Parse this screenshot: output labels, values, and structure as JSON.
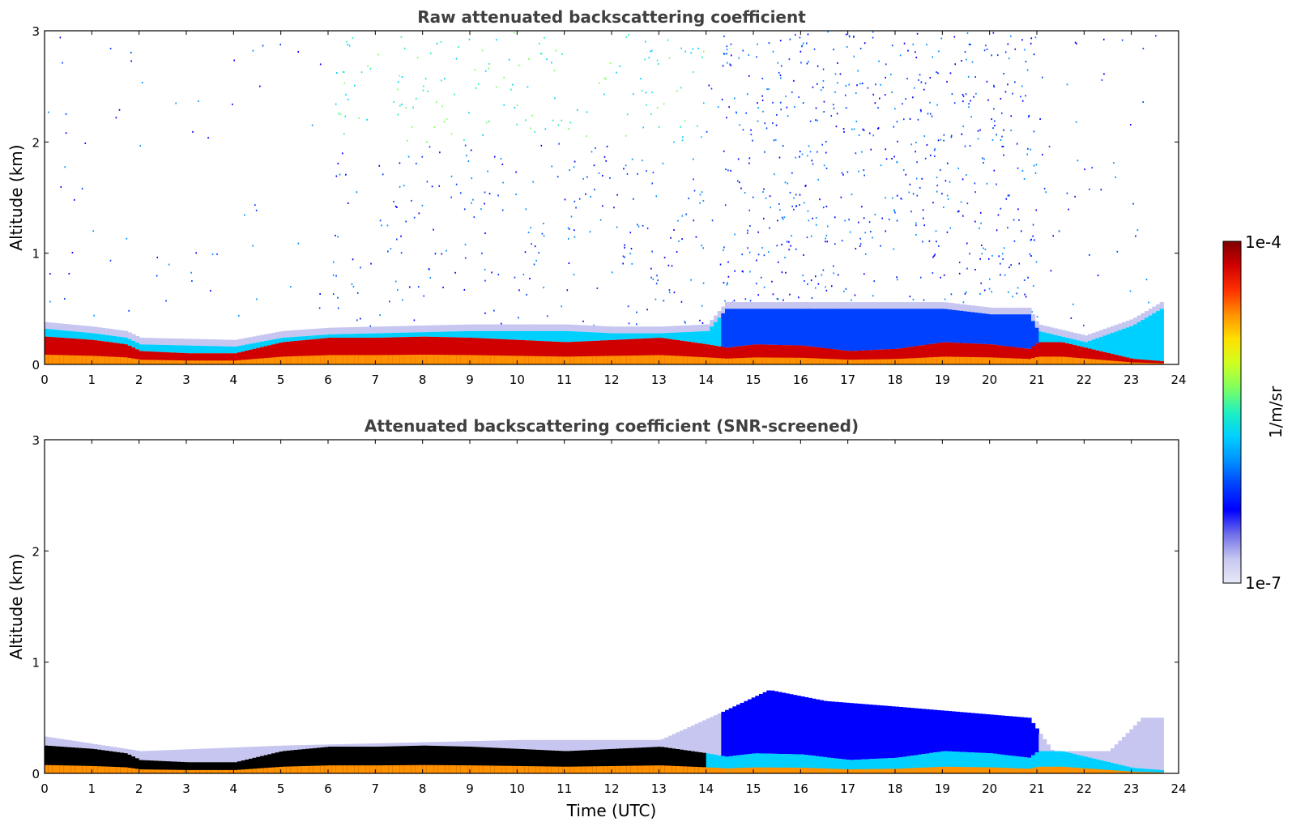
{
  "chart_data": [
    {
      "type": "heatmap",
      "title": "Raw attenuated backscattering coefficient",
      "xlabel": "",
      "ylabel": "Altitude (km)",
      "xlim": [
        0,
        24
      ],
      "ylim": [
        0,
        3
      ],
      "x_ticks": [
        "0",
        "1",
        "2",
        "3",
        "4",
        "5",
        "6",
        "7",
        "8",
        "9",
        "10",
        "11",
        "12",
        "13",
        "14",
        "15",
        "16",
        "17",
        "18",
        "19",
        "20",
        "21",
        "22",
        "23",
        "24"
      ],
      "y_ticks": [
        "0",
        "1",
        "2",
        "3"
      ],
      "aerosol_layer": {
        "time_utc": [
          0,
          1,
          1.7,
          2,
          3,
          4,
          5,
          6,
          7,
          8,
          9,
          10,
          11,
          12,
          13,
          14,
          14.4,
          15,
          16,
          17,
          18,
          19,
          20,
          20.8,
          21,
          21.5,
          22,
          23,
          23.6
        ],
        "top_km": [
          0.32,
          0.28,
          0.24,
          0.18,
          0.17,
          0.16,
          0.24,
          0.27,
          0.28,
          0.29,
          0.3,
          0.3,
          0.3,
          0.28,
          0.28,
          0.3,
          0.5,
          0.5,
          0.5,
          0.5,
          0.5,
          0.5,
          0.45,
          0.45,
          0.3,
          0.25,
          0.2,
          0.35,
          0.5
        ],
        "strong_top_km": [
          0.25,
          0.22,
          0.18,
          0.12,
          0.1,
          0.1,
          0.2,
          0.24,
          0.24,
          0.25,
          0.24,
          0.22,
          0.2,
          0.22,
          0.24,
          0.18,
          0.15,
          0.18,
          0.17,
          0.12,
          0.14,
          0.2,
          0.18,
          0.14,
          0.2,
          0.2,
          0.15,
          0.05,
          0.03
        ]
      },
      "noise_above_layer": "high at 14.3-21 UTC, moderate at 6-14 UTC, low at 0-6 UTC"
    },
    {
      "type": "heatmap",
      "title": "Attenuated backscattering coefficient (SNR-screened)",
      "xlabel": "Time (UTC)",
      "ylabel": "Altitude (km)",
      "xlim": [
        0,
        24
      ],
      "ylim": [
        0,
        3
      ],
      "x_ticks": [
        "0",
        "1",
        "2",
        "3",
        "4",
        "5",
        "6",
        "7",
        "8",
        "9",
        "10",
        "11",
        "12",
        "13",
        "14",
        "15",
        "16",
        "17",
        "18",
        "19",
        "20",
        "21",
        "22",
        "23",
        "24"
      ],
      "y_ticks": [
        "0",
        "1",
        "2",
        "3"
      ],
      "layer_top_km": {
        "time_utc": [
          0,
          2,
          5,
          10,
          13,
          14.3,
          15.3,
          16.5,
          18,
          20.8,
          21.3,
          22.5,
          23.2,
          23.6
        ],
        "top_km": [
          0.33,
          0.2,
          0.25,
          0.3,
          0.3,
          0.55,
          0.75,
          0.65,
          0.6,
          0.5,
          0.2,
          0.2,
          0.5,
          0.5
        ]
      }
    }
  ],
  "colorbar": {
    "label": "1/m/sr",
    "max_label": "1e-4",
    "min_label": "1e-7",
    "scale": "log",
    "range": [
      1e-07,
      0.0001
    ],
    "colormap": [
      "#e8e8f8",
      "#c6c6f0",
      "#6f6fe8",
      "#0000ff",
      "#0040ff",
      "#0090ff",
      "#00d0ff",
      "#20f0c0",
      "#80ff60",
      "#d0ff20",
      "#ffe000",
      "#ff9000",
      "#ff3000",
      "#d00000",
      "#800000"
    ]
  }
}
